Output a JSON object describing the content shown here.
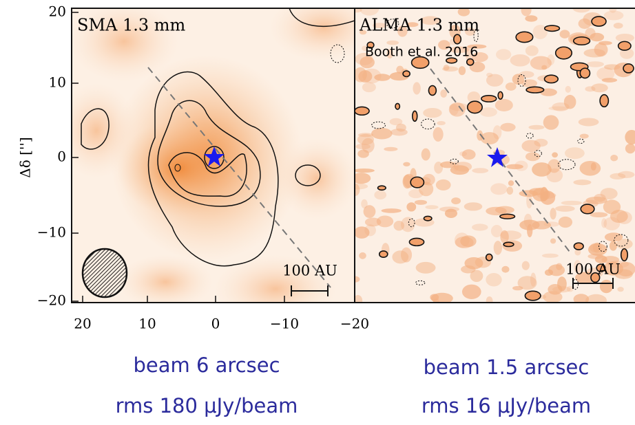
{
  "panels": [
    {
      "label": "SMA 1.3 mm",
      "scale_label": "100 AU"
    },
    {
      "label": "ALMA 1.3 mm",
      "credit": "Booth et al. 2016",
      "scale_label": "100 AU"
    }
  ],
  "y_axis": {
    "label": "Δδ ['']",
    "ticks": [
      "20",
      "10",
      "0",
      "−10",
      "−20"
    ]
  },
  "x_axis": {
    "ticks": [
      "20",
      "10",
      "0",
      "−10",
      "−20"
    ]
  },
  "captions": [
    [
      "beam 6 arcsec",
      "rms 180 μJy/beam"
    ],
    [
      "beam 1.5 arcsec",
      "rms 16 μJy/beam"
    ]
  ]
}
